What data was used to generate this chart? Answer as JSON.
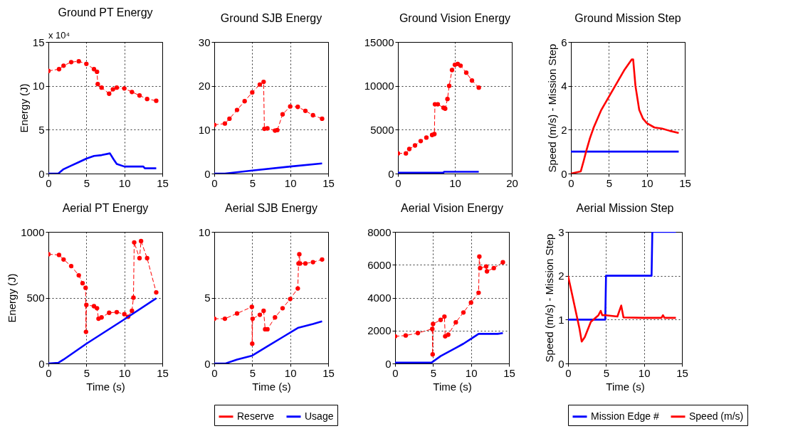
{
  "chart_data": [
    {
      "type": "line",
      "title": "Ground PT Energy",
      "ylabel": "Energy (J)",
      "annotations": [
        "x 10⁴"
      ],
      "xlim": [
        0,
        15
      ],
      "xticks": [
        0,
        5,
        10,
        15
      ],
      "ylim": [
        0,
        15
      ],
      "yticks": [
        0,
        5,
        10,
        15
      ],
      "grid": true,
      "series": [
        {
          "color": "#ff0000",
          "marker": "circle",
          "line_style": "dashed",
          "x": [
            0,
            1.4,
            2,
            3,
            4,
            5,
            6,
            6.4,
            6.5,
            7,
            8,
            8.5,
            9,
            10,
            11,
            12,
            13,
            14.2
          ],
          "values": [
            11.7,
            11.9,
            12.3,
            12.7,
            12.8,
            12.5,
            11.9,
            11.6,
            10.2,
            9.8,
            9.1,
            9.6,
            9.8,
            9.7,
            9.3,
            8.9,
            8.5,
            8.3
          ]
        },
        {
          "color": "#0000ff",
          "line_style": "solid",
          "x": [
            0,
            1.3,
            2,
            3,
            4,
            5,
            6,
            7,
            8.1,
            8.6,
            9,
            10,
            12.5,
            12.7,
            14.2
          ],
          "values": [
            0,
            0,
            0.5,
            0.9,
            1.3,
            1.7,
            2.0,
            2.1,
            2.3,
            1.6,
            1.1,
            0.8,
            0.8,
            0.6,
            0.6
          ]
        }
      ]
    },
    {
      "type": "line",
      "title": "Ground SJB Energy",
      "xlim": [
        0,
        15
      ],
      "xticks": [
        0,
        5,
        10,
        15
      ],
      "ylim": [
        0,
        30
      ],
      "yticks": [
        0,
        10,
        20,
        30
      ],
      "grid": true,
      "series": [
        {
          "color": "#ff0000",
          "marker": "circle",
          "line_style": "dashed",
          "x": [
            0,
            1.4,
            2,
            3,
            4,
            5,
            6,
            6.5,
            6.6,
            7,
            8,
            8.3,
            9,
            10,
            11,
            12,
            13,
            14.2
          ],
          "values": [
            11.1,
            11.4,
            12.5,
            14.5,
            16.5,
            18.5,
            20.3,
            20.9,
            10.2,
            10.3,
            9.8,
            9.9,
            13.5,
            15.3,
            15.2,
            14.3,
            13.3,
            12.5
          ]
        },
        {
          "color": "#0000ff",
          "line_style": "solid",
          "x": [
            0,
            1.4,
            5,
            10,
            14.2
          ],
          "values": [
            0,
            0,
            0.7,
            1.6,
            2.3
          ]
        }
      ]
    },
    {
      "type": "line",
      "title": "Ground Vision Energy",
      "xlim": [
        0,
        20
      ],
      "xticks": [
        0,
        10,
        20
      ],
      "ylim": [
        0,
        15000
      ],
      "yticks": [
        0,
        5000,
        10000,
        15000
      ],
      "grid": true,
      "series": [
        {
          "color": "#ff0000",
          "marker": "circle",
          "line_style": "dashed",
          "x": [
            0,
            1.4,
            2,
            3,
            4,
            5,
            6,
            6.4,
            6.5,
            7,
            8,
            8.3,
            8.7,
            9,
            9.5,
            10,
            10.5,
            11,
            12,
            13,
            14.2
          ],
          "values": [
            2300,
            2300,
            2800,
            3200,
            3700,
            4100,
            4400,
            4500,
            7900,
            7900,
            7500,
            7400,
            8500,
            10000,
            11800,
            12400,
            12500,
            12300,
            11500,
            10600,
            9800
          ]
        },
        {
          "color": "#0000ff",
          "line_style": "solid",
          "x": [
            0,
            8,
            8.1,
            14.2
          ],
          "values": [
            100,
            100,
            200,
            200
          ]
        }
      ]
    },
    {
      "type": "line",
      "title": "Ground Mission Step",
      "ylabel": "Speed (m/s) - Mission Step",
      "xlim": [
        0,
        15
      ],
      "xticks": [
        0,
        5,
        10,
        15
      ],
      "ylim": [
        0,
        6
      ],
      "yticks": [
        0,
        2,
        4,
        6
      ],
      "grid": true,
      "series": [
        {
          "color": "#0000ff",
          "line_style": "solid",
          "x": [
            0,
            14.2
          ],
          "values": [
            1,
            1
          ]
        },
        {
          "color": "#ff0000",
          "line_style": "solid",
          "x": [
            0,
            1.3,
            1.7,
            2,
            2.5,
            3,
            4,
            5,
            6,
            7,
            8,
            8.2,
            8.5,
            9,
            9.5,
            10,
            11,
            12,
            13,
            14.2
          ],
          "values": [
            0,
            0.1,
            0.6,
            1,
            1.6,
            2.1,
            2.9,
            3.5,
            4.1,
            4.7,
            5.2,
            5.2,
            4,
            2.9,
            2.5,
            2.3,
            2.1,
            2.05,
            1.95,
            1.85
          ]
        }
      ]
    },
    {
      "type": "line",
      "title": "Aerial PT Energy",
      "xlabel": "Time (s)",
      "ylabel": "Energy (J)",
      "xlim": [
        0,
        15
      ],
      "xticks": [
        0,
        5,
        10,
        15
      ],
      "ylim": [
        0,
        1000
      ],
      "yticks": [
        0,
        500,
        1000
      ],
      "grid": true,
      "series": [
        {
          "color": "#ff0000",
          "marker": "circle",
          "line_style": "dashed",
          "x": [
            0,
            1.4,
            2,
            3,
            4,
            4.5,
            4.9,
            4.95,
            5,
            6,
            6.4,
            6.6,
            7,
            8,
            9,
            10,
            10.5,
            11,
            11.2,
            11.3,
            12,
            12.2,
            13,
            14.2
          ],
          "values": [
            830,
            825,
            790,
            740,
            670,
            610,
            575,
            240,
            445,
            435,
            420,
            340,
            350,
            385,
            390,
            375,
            355,
            400,
            500,
            920,
            800,
            930,
            800,
            540
          ]
        },
        {
          "color": "#0000ff",
          "line_style": "solid",
          "x": [
            0,
            1.3,
            2,
            5,
            10,
            14.2
          ],
          "values": [
            0,
            5,
            30,
            150,
            335,
            495
          ]
        }
      ]
    },
    {
      "type": "line",
      "title": "Aerial SJB Energy",
      "xlabel": "Time (s)",
      "xlim": [
        0,
        15
      ],
      "xticks": [
        0,
        5,
        10,
        15
      ],
      "ylim": [
        0,
        10
      ],
      "yticks": [
        0,
        5,
        10
      ],
      "grid": true,
      "legend": "bottom",
      "series": [
        {
          "name": "Reserve",
          "color": "#ff0000",
          "marker": "circle",
          "line_style": "dashed",
          "x": [
            0,
            1.4,
            3,
            4.95,
            5,
            5.05,
            6,
            6.5,
            6.7,
            7,
            8,
            9,
            10,
            11,
            11.1,
            11.2,
            11.3,
            12,
            13,
            14.2
          ],
          "values": [
            3.4,
            3.4,
            3.8,
            4.3,
            1.5,
            3.4,
            3.7,
            4.0,
            2.6,
            2.6,
            3.5,
            4.2,
            4.9,
            5.7,
            7.6,
            8.3,
            7.6,
            7.6,
            7.7,
            7.9
          ]
        },
        {
          "name": "Usage",
          "color": "#0000ff",
          "line_style": "solid",
          "x": [
            0,
            1.5,
            3,
            5,
            7,
            9,
            11,
            13,
            14.2
          ],
          "values": [
            0,
            0,
            0.3,
            0.6,
            1.3,
            2.0,
            2.7,
            3.0,
            3.2
          ]
        }
      ]
    },
    {
      "type": "line",
      "title": "Aerial Vision Energy",
      "xlabel": "Time (s)",
      "xlim": [
        0,
        15
      ],
      "xticks": [
        0,
        5,
        10,
        15
      ],
      "ylim": [
        0,
        8000
      ],
      "yticks": [
        0,
        2000,
        4000,
        6000,
        8000
      ],
      "grid": true,
      "series": [
        {
          "color": "#ff0000",
          "marker": "circle",
          "line_style": "dashed",
          "x": [
            0,
            1.4,
            3,
            4.9,
            4.95,
            5,
            6,
            6.5,
            6.6,
            7,
            8,
            9,
            10,
            11,
            11.1,
            11.2,
            12,
            12.1,
            13,
            14.2
          ],
          "values": [
            1650,
            1700,
            1850,
            2100,
            550,
            2400,
            2650,
            2850,
            1650,
            1750,
            2500,
            3100,
            3700,
            4300,
            6500,
            5800,
            5900,
            5600,
            5800,
            6150
          ]
        },
        {
          "color": "#0000ff",
          "line_style": "solid",
          "x": [
            0,
            4.8,
            6,
            7,
            8,
            9,
            10,
            11,
            13.5,
            14.2
          ],
          "values": [
            50,
            50,
            450,
            700,
            950,
            1200,
            1500,
            1800,
            1800,
            1850
          ]
        }
      ]
    },
    {
      "type": "line",
      "title": "Aerial Mission Step",
      "xlabel": "Time (s)",
      "ylabel": "Speed (m/s) - Mission Step",
      "xlim": [
        0,
        15
      ],
      "xticks": [
        0,
        5,
        10,
        15
      ],
      "ylim": [
        0,
        3
      ],
      "yticks": [
        0,
        1,
        2,
        3
      ],
      "grid": true,
      "legend": "bottom",
      "series": [
        {
          "name": "Mission Edge #",
          "color": "#0000ff",
          "line_style": "solid",
          "x": [
            0,
            4.9,
            5,
            11,
            11.1,
            14.2
          ],
          "values": [
            1,
            1,
            2,
            2,
            3,
            3
          ]
        },
        {
          "name": "Speed (m/s)",
          "color": "#ff0000",
          "line_style": "solid",
          "x": [
            0,
            0.5,
            1,
            1.5,
            1.8,
            2.2,
            3,
            4,
            4.3,
            4.5,
            5,
            6.5,
            7,
            7.3,
            10,
            12.3,
            12.5,
            12.7,
            14.2
          ],
          "values": [
            2,
            1.6,
            1.2,
            0.8,
            0.5,
            0.6,
            0.95,
            1.1,
            1.2,
            1.1,
            1.1,
            1.07,
            1.32,
            1.05,
            1.04,
            1.04,
            1.1,
            1.04,
            1.04
          ]
        }
      ]
    }
  ]
}
